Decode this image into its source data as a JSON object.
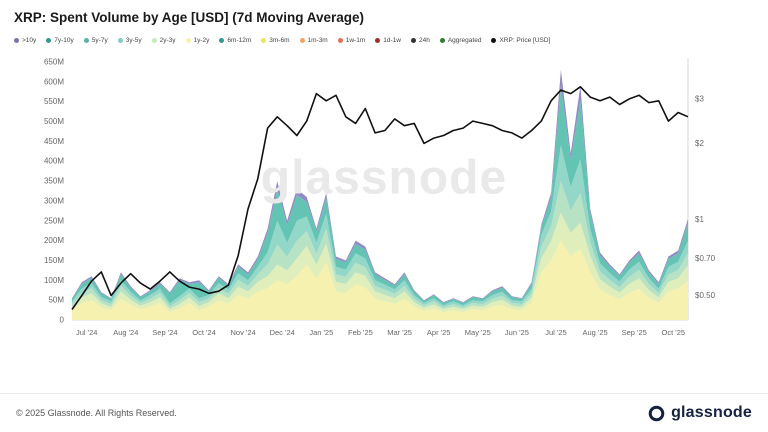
{
  "header": {
    "title": "XRP: Spent Volume by Age [USD] (7d Moving Average)"
  },
  "watermark": "glassnode",
  "footer": {
    "copyright": "© 2025 Glassnode. All Rights Reserved.",
    "logo_text": "glassnode"
  },
  "legend": {
    "items": [
      {
        "label": ">10y",
        "color": "#8073ac"
      },
      {
        "label": "7y-10y",
        "color": "#35978f"
      },
      {
        "label": "5y-7y",
        "color": "#5ab4a6"
      },
      {
        "label": "3y-5y",
        "color": "#80cdc1"
      },
      {
        "label": "2y-3y",
        "color": "#c7e9c0"
      },
      {
        "label": "1y-2y",
        "color": "#f6f3a9"
      },
      {
        "label": "6m-12m",
        "color": "#2a9d8f"
      },
      {
        "label": "3m-6m",
        "color": "#e9e75f"
      },
      {
        "label": "1m-3m",
        "color": "#f4a261"
      },
      {
        "label": "1w-1m",
        "color": "#e76f51"
      },
      {
        "label": "1d-1w",
        "color": "#9d2f2f"
      },
      {
        "label": "24h",
        "color": "#333333"
      },
      {
        "label": "Aggregated",
        "color": "#2e7d32"
      },
      {
        "label": "XRP: Price [USD]",
        "color": "#111111"
      }
    ]
  },
  "chart_data": {
    "type": "area",
    "title": "XRP: Spent Volume by Age [USD] (7d Moving Average)",
    "subtitle": "stacked spent-volume age bands (left axis, USD millions) with XRP price line (right axis, log scale)",
    "x_labels": [
      "Jul '24",
      "Aug '24",
      "Sep '24",
      "Oct '24",
      "Nov '24",
      "Dec '24",
      "Jan '25",
      "Feb '25",
      "Mar '25",
      "Apr '25",
      "May '25",
      "Jun '25",
      "Jul '25",
      "Aug '25",
      "Sep '25",
      "Oct '25"
    ],
    "points_per_month": 4,
    "volume_axis": {
      "max": 650,
      "unit": "M",
      "ticks": [
        {
          "label": "650M",
          "value": 650
        },
        {
          "label": "600M",
          "value": 600
        },
        {
          "label": "550M",
          "value": 550
        },
        {
          "label": "500M",
          "value": 500
        },
        {
          "label": "450M",
          "value": 450
        },
        {
          "label": "400M",
          "value": 400
        },
        {
          "label": "350M",
          "value": 350
        },
        {
          "label": "300M",
          "value": 300
        },
        {
          "label": "250M",
          "value": 250
        },
        {
          "label": "200M",
          "value": 200
        },
        {
          "label": "150M",
          "value": 150
        },
        {
          "label": "100M",
          "value": 100
        },
        {
          "label": "50M",
          "value": 50
        },
        {
          "label": "0",
          "value": 0
        }
      ]
    },
    "price_axis": {
      "scale": "log",
      "min": 0.4,
      "max": 4.2,
      "ticks": [
        {
          "label": "$3",
          "value": 3
        },
        {
          "label": "$2",
          "value": 2
        },
        {
          "label": "$1",
          "value": 1
        },
        {
          "label": "$0.70",
          "value": 0.7
        },
        {
          "label": "$0.50",
          "value": 0.5
        }
      ]
    },
    "series": [
      {
        "name": "1y-2y",
        "color": "#f6f0a8",
        "values": [
          25,
          43,
          50,
          32,
          25,
          54,
          38,
          27,
          34,
          43,
          20,
          30,
          43,
          25,
          34,
          50,
          41,
          63,
          54,
          72,
          80,
          100,
          90,
          110,
          140,
          104,
          144,
          72,
          68,
          90,
          83,
          54,
          47,
          41,
          54,
          34,
          23,
          29,
          20,
          25,
          20,
          27,
          25,
          34,
          38,
          27,
          25,
          43,
          120,
          150,
          200,
          160,
          180,
          120,
          77,
          63,
          52,
          68,
          79,
          56,
          43,
          72,
          79,
          100
        ]
      },
      {
        "name": "2y-3y",
        "color": "#dcedb4",
        "values": [
          8,
          14,
          17,
          10,
          8,
          18,
          13,
          9,
          11,
          14,
          8,
          10,
          14,
          10,
          11,
          17,
          14,
          21,
          18,
          24,
          30,
          40,
          35,
          45,
          47,
          35,
          48,
          24,
          23,
          30,
          28,
          18,
          16,
          14,
          18,
          11,
          8,
          10,
          7,
          8,
          7,
          9,
          8,
          11,
          13,
          9,
          8,
          14,
          36,
          48,
          70,
          60,
          65,
          42,
          26,
          21,
          17,
          23,
          26,
          19,
          14,
          24,
          26,
          38
        ]
      },
      {
        "name": "3y-5y",
        "color": "#b2e0bf",
        "values": [
          7,
          11,
          13,
          8,
          7,
          14,
          10,
          7,
          9,
          11,
          7,
          10,
          11,
          10,
          9,
          13,
          11,
          17,
          14,
          19,
          30,
          50,
          35,
          45,
          37,
          28,
          38,
          19,
          18,
          24,
          22,
          14,
          13,
          11,
          14,
          9,
          6,
          8,
          5,
          7,
          5,
          7,
          7,
          9,
          10,
          7,
          7,
          11,
          29,
          38,
          80,
          55,
          75,
          34,
          20,
          17,
          14,
          18,
          21,
          15,
          11,
          19,
          21,
          31
        ]
      },
      {
        "name": "6m-12m",
        "color": "#8ad4c4",
        "values": [
          7,
          11,
          13,
          8,
          7,
          14,
          10,
          7,
          9,
          11,
          7,
          10,
          11,
          10,
          9,
          13,
          11,
          17,
          14,
          19,
          30,
          60,
          35,
          50,
          37,
          28,
          38,
          19,
          18,
          24,
          22,
          14,
          13,
          11,
          14,
          9,
          6,
          8,
          5,
          7,
          5,
          7,
          7,
          9,
          10,
          7,
          7,
          11,
          29,
          38,
          90,
          60,
          85,
          34,
          20,
          17,
          14,
          18,
          21,
          15,
          11,
          19,
          21,
          31
        ]
      },
      {
        "name": "5y-7y",
        "color": "#57bfae",
        "values": [
          6,
          12,
          13,
          9,
          6,
          15,
          10,
          8,
          9,
          12,
          25,
          40,
          12,
          40,
          9,
          13,
          10,
          17,
          15,
          20,
          50,
          80,
          45,
          65,
          37,
          28,
          40,
          20,
          18,
          24,
          22,
          15,
          12,
          10,
          15,
          9,
          5,
          8,
          6,
          6,
          6,
          8,
          6,
          9,
          10,
          8,
          6,
          12,
          20,
          36,
          150,
          70,
          150,
          40,
          20,
          17,
          14,
          18,
          21,
          15,
          12,
          20,
          21,
          45
        ]
      },
      {
        "name": ">10y",
        "color": "#8a7fc0",
        "values": [
          2,
          4,
          4,
          3,
          2,
          5,
          4,
          2,
          3,
          4,
          3,
          5,
          4,
          5,
          3,
          4,
          3,
          5,
          5,
          6,
          10,
          20,
          10,
          15,
          12,
          7,
          12,
          6,
          5,
          8,
          8,
          5,
          4,
          3,
          5,
          3,
          2,
          2,
          2,
          2,
          2,
          2,
          2,
          3,
          4,
          2,
          2,
          4,
          6,
          10,
          40,
          15,
          35,
          10,
          7,
          5,
          4,
          5,
          7,
          5,
          4,
          6,
          7,
          10
        ]
      }
    ],
    "price_series": {
      "name": "XRP: Price [USD]",
      "color": "#111111",
      "values": [
        0.44,
        0.5,
        0.57,
        0.62,
        0.5,
        0.56,
        0.61,
        0.56,
        0.53,
        0.57,
        0.62,
        0.57,
        0.54,
        0.53,
        0.51,
        0.52,
        0.55,
        0.72,
        1.1,
        1.45,
        2.3,
        2.55,
        2.35,
        2.15,
        2.45,
        3.15,
        2.95,
        3.1,
        2.55,
        2.4,
        2.75,
        2.2,
        2.25,
        2.5,
        2.35,
        2.4,
        2.0,
        2.1,
        2.15,
        2.25,
        2.3,
        2.45,
        2.4,
        2.35,
        2.25,
        2.2,
        2.1,
        2.25,
        2.45,
        2.95,
        3.25,
        3.15,
        3.35,
        3.05,
        2.95,
        3.05,
        2.85,
        3.0,
        3.1,
        2.9,
        2.95,
        2.45,
        2.65,
        2.55
      ]
    }
  }
}
